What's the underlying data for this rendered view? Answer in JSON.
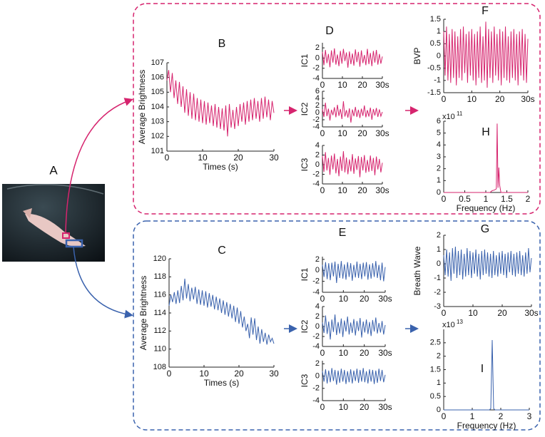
{
  "image_panel": {
    "label": "A"
  },
  "chart_data": [
    {
      "type": "line",
      "label": "B",
      "ylabel": "Average Brightness",
      "xlabel": "Times (s)",
      "color": "#d6246e",
      "xlim": [
        0,
        30
      ],
      "xticks": [
        0,
        10,
        20,
        30
      ],
      "ylim": [
        101,
        107
      ],
      "yticks": [
        101,
        102,
        103,
        104,
        105,
        106,
        107
      ],
      "x": [
        0,
        0.5,
        1,
        1.5,
        2,
        2.5,
        3,
        3.5,
        4,
        4.5,
        5,
        5.5,
        6,
        6.5,
        7,
        7.5,
        8,
        8.5,
        9,
        9.5,
        10,
        10.5,
        11,
        11.5,
        12,
        12.5,
        13,
        13.5,
        14,
        14.5,
        15,
        15.5,
        16,
        16.5,
        17,
        17.5,
        18,
        18.5,
        19,
        19.5,
        20,
        20.5,
        21,
        21.5,
        22,
        22.5,
        23,
        23.5,
        24,
        24.5,
        25,
        25.5,
        26,
        26.5,
        27,
        27.5,
        28,
        28.5,
        29,
        29.5,
        30
      ],
      "values": [
        105.8,
        106.5,
        105.0,
        106.3,
        104.6,
        105.8,
        104.2,
        105.7,
        104.0,
        105.4,
        103.6,
        105.2,
        103.4,
        105.0,
        103.2,
        104.9,
        103.1,
        104.6,
        103.0,
        104.5,
        102.9,
        104.4,
        102.8,
        104.3,
        102.9,
        104.1,
        102.7,
        104.2,
        102.6,
        104.0,
        102.5,
        103.9,
        102.4,
        104.1,
        102.0,
        104.2,
        102.6,
        103.8,
        102.5,
        104.0,
        102.7,
        104.2,
        103.0,
        104.3,
        102.8,
        104.4,
        103.0,
        104.5,
        103.1,
        104.6,
        103.2,
        104.4,
        103.0,
        104.6,
        103.2,
        104.7,
        103.3,
        104.5,
        103.1,
        104.4,
        103.6
      ]
    },
    {
      "type": "line",
      "label": "D",
      "ylabel": "IC1",
      "color": "#d6246e",
      "xlim": [
        0,
        30
      ],
      "xticks": [
        0,
        10,
        20,
        {
          "value": 30,
          "label": "30s"
        }
      ],
      "ylim": [
        -4,
        3
      ],
      "yticks": [
        -4,
        -2,
        0,
        2
      ],
      "x": [
        0,
        0.75,
        1.5,
        2.25,
        3,
        3.75,
        4.5,
        5.25,
        6,
        6.75,
        7.5,
        8.25,
        9,
        9.75,
        10.5,
        11.25,
        12,
        12.75,
        13.5,
        14.25,
        15,
        15.75,
        16.5,
        17.25,
        18,
        18.75,
        19.5,
        20.25,
        21,
        21.75,
        22.5,
        23.25,
        24,
        24.75,
        25.5,
        26.25,
        27,
        27.75,
        28.5,
        29.25,
        30
      ],
      "values": [
        1.2,
        -1.4,
        1.6,
        -1.0,
        0.8,
        -1.8,
        1.5,
        -0.9,
        1.9,
        -1.3,
        0.7,
        -1.6,
        1.4,
        -1.1,
        1.8,
        -0.6,
        1.1,
        -1.9,
        1.3,
        -1.2,
        0.9,
        -1.5,
        1.7,
        -0.8,
        1.2,
        -1.7,
        1.5,
        -1.0,
        0.6,
        -1.4,
        1.8,
        -1.2,
        1.0,
        -1.6,
        1.4,
        -0.9,
        1.6,
        -1.3,
        0.8,
        -1.1,
        0.3
      ]
    },
    {
      "type": "line",
      "ylabel": "IC2",
      "color": "#d6246e",
      "xlim": [
        0,
        30
      ],
      "xticks": [
        0,
        10,
        20,
        {
          "value": 30,
          "label": "30s"
        }
      ],
      "ylim": [
        -4,
        6
      ],
      "yticks": [
        -4,
        -2,
        0,
        2,
        4,
        6
      ],
      "x": [
        0,
        0.75,
        1.5,
        2.25,
        3,
        3.75,
        4.5,
        5.25,
        6,
        6.75,
        7.5,
        8.25,
        9,
        9.75,
        10.5,
        11.25,
        12,
        12.75,
        13.5,
        14.25,
        15,
        15.75,
        16.5,
        17.25,
        18,
        18.75,
        19.5,
        20.25,
        21,
        21.75,
        22.5,
        23.25,
        24,
        24.75,
        25.5,
        26.25,
        27,
        27.75,
        28.5,
        29.25,
        30
      ],
      "values": [
        0.9,
        -1.2,
        2.8,
        -1.0,
        1.1,
        -2.2,
        0.8,
        -0.7,
        1.5,
        -1.3,
        2.2,
        -0.9,
        1.0,
        -1.8,
        3.2,
        -1.1,
        0.7,
        -1.4,
        1.2,
        -2.8,
        0.9,
        -1.0,
        1.6,
        -1.2,
        0.8,
        -1.5,
        1.1,
        -0.9,
        2.0,
        -1.3,
        0.7,
        -1.1,
        1.4,
        -2.0,
        1.0,
        -0.8,
        1.3,
        -1.2,
        0.9,
        -1.0,
        0.2
      ]
    },
    {
      "type": "line",
      "ylabel": "IC3",
      "color": "#d6246e",
      "xlim": [
        0,
        30
      ],
      "xticks": [
        0,
        10,
        20,
        {
          "value": 30,
          "label": "30s"
        }
      ],
      "ylim": [
        -4,
        4
      ],
      "yticks": [
        -4,
        -2,
        0,
        2,
        4
      ],
      "x": [
        0,
        0.75,
        1.5,
        2.25,
        3,
        3.75,
        4.5,
        5.25,
        6,
        6.75,
        7.5,
        8.25,
        9,
        9.75,
        10.5,
        11.25,
        12,
        12.75,
        13.5,
        14.25,
        15,
        15.75,
        16.5,
        17.25,
        18,
        18.75,
        19.5,
        20.25,
        21,
        21.75,
        22.5,
        23.25,
        24,
        24.75,
        25.5,
        26.25,
        27,
        27.75,
        28.5,
        29.25,
        30
      ],
      "values": [
        1.8,
        -1.5,
        2.6,
        -1.2,
        1.4,
        -2.1,
        1.9,
        -1.0,
        2.3,
        -1.8,
        1.2,
        -2.4,
        1.7,
        -1.3,
        2.8,
        -1.6,
        1.5,
        -2.0,
        1.1,
        -1.4,
        2.2,
        -1.9,
        1.3,
        -1.1,
        1.8,
        -2.6,
        1.6,
        -1.2,
        2.0,
        -1.7,
        1.0,
        -1.5,
        1.9,
        -1.3,
        1.4,
        -2.2,
        1.7,
        -1.0,
        1.2,
        -1.6,
        0.4
      ]
    },
    {
      "type": "line",
      "label": "F",
      "ylabel": "BVP",
      "color": "#d6246e",
      "xlim": [
        0,
        30
      ],
      "xticks": [
        0,
        10,
        20,
        {
          "value": 30,
          "label": "30s"
        }
      ],
      "ylim": [
        -1.5,
        1.5
      ],
      "yticks": [
        -1.5,
        -1,
        -0.5,
        0,
        0.5,
        1,
        1.5
      ],
      "x": [
        0,
        0.5,
        1,
        1.5,
        2,
        2.5,
        3,
        3.5,
        4,
        4.5,
        5,
        5.5,
        6,
        6.5,
        7,
        7.5,
        8,
        8.5,
        9,
        9.5,
        10,
        10.5,
        11,
        11.5,
        12,
        12.5,
        13,
        13.5,
        14,
        14.5,
        15,
        15.5,
        16,
        16.5,
        17,
        17.5,
        18,
        18.5,
        19,
        19.5,
        20,
        20.5,
        21,
        21.5,
        22,
        22.5,
        23,
        23.5,
        24,
        24.5,
        25,
        25.5,
        26,
        26.5,
        27,
        27.5,
        28,
        28.5,
        29,
        29.5,
        30
      ],
      "values": [
        1.0,
        -0.8,
        1.2,
        -1.0,
        0.9,
        -1.1,
        1.1,
        -0.9,
        1.0,
        -1.2,
        0.8,
        -0.9,
        1.1,
        -1.0,
        1.2,
        -0.7,
        0.9,
        -1.1,
        1.0,
        -0.8,
        1.1,
        -1.0,
        0.9,
        -1.2,
        1.0,
        -0.9,
        1.2,
        -1.1,
        0.8,
        -1.0,
        1.4,
        -1.3,
        1.1,
        -0.9,
        1.0,
        -1.1,
        1.2,
        -0.8,
        0.9,
        -1.0,
        1.1,
        -1.2,
        1.0,
        -0.9,
        1.2,
        -1.0,
        0.8,
        -1.1,
        1.0,
        -0.9,
        1.1,
        -1.0,
        0.9,
        -1.2,
        1.0,
        -0.8,
        1.1,
        -1.0,
        0.9,
        -1.1,
        0.7
      ]
    },
    {
      "type": "line",
      "label": "H",
      "xlabel": "Frequency (Hz)",
      "y_multiplier": "x10",
      "y_multiplier_exp": "11",
      "color": "#d6246e",
      "xlim": [
        0,
        2
      ],
      "xticks": [
        0,
        0.5,
        1,
        1.5,
        2
      ],
      "ylim": [
        0,
        6
      ],
      "yticks": [
        0,
        1,
        2,
        3,
        4,
        5,
        6
      ],
      "x": [
        0,
        1.1,
        1.15,
        1.2,
        1.25,
        1.27,
        1.29,
        1.31,
        1.33,
        1.36,
        1.45,
        2
      ],
      "values": [
        0,
        0,
        0.15,
        0.2,
        0.3,
        5.8,
        0.4,
        2.1,
        0.6,
        0,
        0,
        0
      ]
    },
    {
      "type": "line",
      "label": "C",
      "ylabel": "Average Brightness",
      "xlabel": "Times (s)",
      "color": "#3a62ad",
      "xlim": [
        0,
        30
      ],
      "xticks": [
        0,
        10,
        20,
        30
      ],
      "ylim": [
        108,
        120
      ],
      "yticks": [
        108,
        110,
        112,
        114,
        116,
        118,
        120
      ],
      "x": [
        0,
        0.5,
        1,
        1.5,
        2,
        2.5,
        3,
        3.5,
        4,
        4.5,
        5,
        5.5,
        6,
        6.5,
        7,
        7.5,
        8,
        8.5,
        9,
        9.5,
        10,
        10.5,
        11,
        11.5,
        12,
        12.5,
        13,
        13.5,
        14,
        14.5,
        15,
        15.5,
        16,
        16.5,
        17,
        17.5,
        18,
        18.5,
        19,
        19.5,
        20,
        20.5,
        21,
        21.5,
        22,
        22.5,
        23,
        23.5,
        24,
        24.5,
        25,
        25.5,
        26,
        26.5,
        27,
        27.5,
        28,
        28.5,
        29,
        29.5,
        30
      ],
      "values": [
        114.8,
        116.0,
        115.2,
        116.3,
        115.0,
        116.5,
        115.1,
        117.0,
        115.4,
        117.8,
        115.6,
        117.2,
        115.3,
        116.8,
        115.5,
        116.9,
        115.0,
        116.6,
        114.9,
        116.5,
        114.8,
        116.4,
        114.6,
        116.2,
        114.7,
        116.0,
        114.4,
        115.8,
        114.3,
        115.6,
        114.0,
        115.4,
        113.8,
        115.2,
        113.6,
        115.0,
        113.4,
        114.8,
        113.0,
        114.6,
        112.8,
        114.2,
        112.4,
        113.6,
        112.0,
        112.8,
        111.2,
        113.5,
        111.6,
        113.4,
        111.0,
        112.5,
        110.6,
        112.2,
        110.8,
        111.8,
        110.5,
        111.6,
        110.8,
        111.2,
        110.6
      ]
    },
    {
      "type": "line",
      "label": "E",
      "ylabel": "IC1",
      "color": "#3a62ad",
      "xlim": [
        0,
        30
      ],
      "xticks": [
        0,
        10,
        20,
        {
          "value": 30,
          "label": "30s"
        }
      ],
      "ylim": [
        -4,
        2.5
      ],
      "yticks": [
        -4,
        -2,
        0,
        2
      ],
      "x": [
        0,
        0.75,
        1.5,
        2.25,
        3,
        3.75,
        4.5,
        5.25,
        6,
        6.75,
        7.5,
        8.25,
        9,
        9.75,
        10.5,
        11.25,
        12,
        12.75,
        13.5,
        14.25,
        15,
        15.75,
        16.5,
        17.25,
        18,
        18.75,
        19.5,
        20.25,
        21,
        21.75,
        22.5,
        23.25,
        24,
        24.75,
        25.5,
        26.25,
        27,
        27.75,
        28.5,
        29.25,
        30
      ],
      "values": [
        1.0,
        -1.2,
        1.5,
        -1.6,
        1.3,
        -1.8,
        1.4,
        -1.1,
        1.6,
        -2.3,
        1.2,
        -1.4,
        1.7,
        -1.5,
        1.1,
        -1.7,
        1.5,
        -1.2,
        1.3,
        -1.9,
        1.0,
        -1.3,
        1.6,
        -1.4,
        1.2,
        -1.6,
        1.4,
        -1.1,
        1.5,
        -1.7,
        1.1,
        -1.5,
        1.3,
        -1.2,
        1.7,
        -1.4,
        1.0,
        -1.8,
        1.4,
        -2.0,
        0.6
      ]
    },
    {
      "type": "line",
      "ylabel": "IC2",
      "color": "#3a62ad",
      "xlim": [
        0,
        30
      ],
      "xticks": [
        0,
        10,
        20,
        {
          "value": 30,
          "label": "30s"
        }
      ],
      "ylim": [
        -4,
        4
      ],
      "yticks": [
        -4,
        -2,
        0,
        2,
        4
      ],
      "x": [
        0,
        0.75,
        1.5,
        2.25,
        3,
        3.75,
        4.5,
        5.25,
        6,
        6.75,
        7.5,
        8.25,
        9,
        9.75,
        10.5,
        11.25,
        12,
        12.75,
        13.5,
        14.25,
        15,
        15.75,
        16.5,
        17.25,
        18,
        18.75,
        19.5,
        20.25,
        21,
        21.75,
        22.5,
        23.25,
        24,
        24.75,
        25.5,
        26.25,
        27,
        27.75,
        28.5,
        29.25,
        30
      ],
      "values": [
        0.8,
        -1.3,
        2.2,
        -1.5,
        1.0,
        -2.6,
        1.4,
        -1.1,
        2.4,
        -1.7,
        0.9,
        -1.4,
        1.6,
        -2.1,
        1.2,
        -1.0,
        2.0,
        -1.6,
        0.8,
        -1.3,
        1.5,
        -1.8,
        1.1,
        -0.9,
        1.7,
        -2.2,
        1.0,
        -1.2,
        1.4,
        -1.5,
        0.9,
        -1.9,
        1.3,
        -1.0,
        1.8,
        -1.4,
        0.7,
        -1.2,
        1.1,
        -1.6,
        0.3
      ]
    },
    {
      "type": "line",
      "ylabel": "IC3",
      "color": "#3a62ad",
      "xlim": [
        0,
        30
      ],
      "xticks": [
        0,
        10,
        20,
        {
          "value": 30,
          "label": "30s"
        }
      ],
      "ylim": [
        -4,
        2.5
      ],
      "yticks": [
        -4,
        -2,
        0,
        2
      ],
      "x": [
        0,
        0.75,
        1.5,
        2.25,
        3,
        3.75,
        4.5,
        5.25,
        6,
        6.75,
        7.5,
        8.25,
        9,
        9.75,
        10.5,
        11.25,
        12,
        12.75,
        13.5,
        14.25,
        15,
        15.75,
        16.5,
        17.25,
        18,
        18.75,
        19.5,
        20.25,
        21,
        21.75,
        22.5,
        23.25,
        24,
        24.75,
        25.5,
        26.25,
        27,
        27.75,
        28.5,
        29.25,
        30
      ],
      "values": [
        0.8,
        -0.9,
        1.1,
        -1.2,
        0.9,
        -1.0,
        1.3,
        -0.8,
        1.0,
        -1.4,
        0.9,
        -1.1,
        1.2,
        -0.9,
        1.0,
        -1.3,
        0.8,
        -1.0,
        1.1,
        -1.2,
        0.9,
        -0.8,
        1.2,
        -1.1,
        1.0,
        -0.9,
        1.3,
        -1.0,
        0.8,
        -1.2,
        1.1,
        -0.9,
        1.0,
        -1.3,
        0.9,
        -1.1,
        1.2,
        -0.8,
        1.0,
        -1.0,
        0.2
      ]
    },
    {
      "type": "line",
      "label": "G",
      "ylabel": "Breath Wave",
      "color": "#3a62ad",
      "xlim": [
        0,
        30
      ],
      "xticks": [
        0,
        10,
        20,
        {
          "value": 30,
          "label": "30s"
        }
      ],
      "ylim": [
        -3,
        2
      ],
      "yticks": [
        -3,
        -2,
        -1,
        0,
        1,
        2
      ],
      "x": [
        0,
        0.5,
        1,
        1.5,
        2,
        2.5,
        3,
        3.5,
        4,
        4.5,
        5,
        5.5,
        6,
        6.5,
        7,
        7.5,
        8,
        8.5,
        9,
        9.5,
        10,
        10.5,
        11,
        11.5,
        12,
        12.5,
        13,
        13.5,
        14,
        14.5,
        15,
        15.5,
        16,
        16.5,
        17,
        17.5,
        18,
        18.5,
        19,
        19.5,
        20,
        20.5,
        21,
        21.5,
        22,
        22.5,
        23,
        23.5,
        24,
        24.5,
        25,
        25.5,
        26,
        26.5,
        27,
        27.5,
        28,
        28.5,
        29,
        29.5,
        30
      ],
      "values": [
        0.6,
        -0.8,
        1.0,
        -0.9,
        0.8,
        -1.2,
        1.1,
        -0.7,
        1.2,
        -1.0,
        0.9,
        -0.8,
        1.0,
        -1.1,
        0.7,
        -0.9,
        1.1,
        -0.8,
        0.9,
        -1.0,
        0.8,
        -0.7,
        1.0,
        -0.9,
        0.7,
        -1.1,
        0.9,
        -0.8,
        1.0,
        -0.7,
        0.8,
        -0.9,
        0.7,
        -1.0,
        0.9,
        -0.8,
        0.6,
        -0.9,
        0.8,
        -0.7,
        0.9,
        -0.8,
        0.7,
        -1.0,
        0.8,
        -0.6,
        0.9,
        -0.8,
        0.7,
        -0.9,
        0.8,
        -0.7,
        0.9,
        -0.8,
        0.6,
        -0.9,
        0.8,
        -0.7,
        1.1,
        -0.6,
        0.4
      ]
    },
    {
      "type": "line",
      "label": "I",
      "xlabel": "Frequency (Hz)",
      "y_multiplier": "x10",
      "y_multiplier_exp": "13",
      "color": "#3a62ad",
      "xlim": [
        0,
        3
      ],
      "xticks": [
        0,
        1,
        2,
        3
      ],
      "ylim": [
        0,
        3
      ],
      "yticks": [
        0,
        0.5,
        1,
        1.5,
        2,
        2.5
      ],
      "x": [
        0,
        1.6,
        1.65,
        1.7,
        1.75,
        1.8,
        3
      ],
      "values": [
        0,
        0,
        0.05,
        2.6,
        0.05,
        0,
        0
      ]
    }
  ]
}
